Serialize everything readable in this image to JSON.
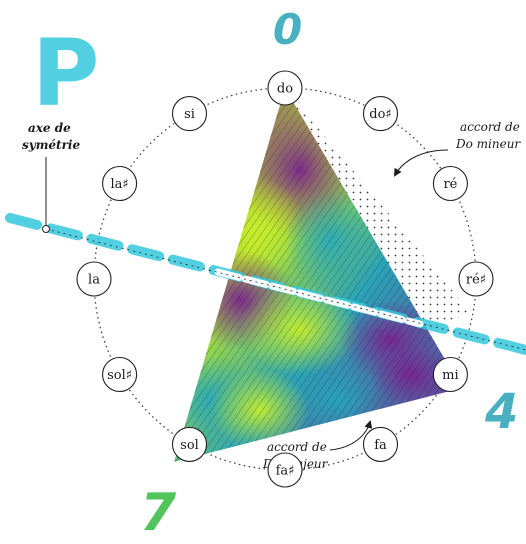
{
  "colors": {
    "cyan": "#35c8dc",
    "purple": "#7a2390",
    "lime": "#b8e62a",
    "green": "#3fbf4a",
    "teal": "#2aa3b8",
    "ink": "#1a1a1a"
  },
  "big_letter": "P",
  "corner_numbers": {
    "top": "0",
    "right": "4",
    "bottom": "7"
  },
  "notes": [
    {
      "id": "note-minor",
      "line1": "accord de",
      "line2": "Do mineur"
    },
    {
      "id": "note-major",
      "line1": "accord de",
      "line2": "Do Majeur"
    }
  ],
  "axis_label": {
    "line1": "axe de",
    "line2": "symétrie"
  },
  "pitch_classes": [
    "do",
    "do♯",
    "ré",
    "ré♯",
    "mi",
    "fa",
    "fa♯",
    "sol",
    "sol♯",
    "la",
    "la♯",
    "si"
  ],
  "triangle_vertices": {
    "major": [
      "do",
      "mi",
      "sol"
    ],
    "minor": [
      "do",
      "ré♯",
      "sol"
    ]
  }
}
